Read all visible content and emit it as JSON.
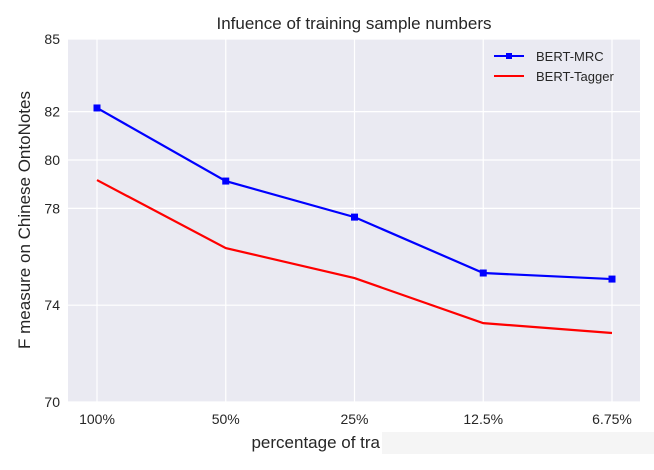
{
  "chart_data": {
    "type": "line",
    "title": "Infuence of training sample numbers",
    "xlabel": "percentage of tra",
    "ylabel": "F measure on Chinese OntoNotes",
    "categories": [
      "100%",
      "50%",
      "25%",
      "12.5%",
      "6.75%"
    ],
    "yticks": [
      70,
      74,
      78,
      80,
      82,
      85
    ],
    "ylim": [
      70,
      85
    ],
    "grid": true,
    "legend_position": "top-right",
    "series": [
      {
        "name": "BERT-MRC",
        "color": "#0000ff",
        "marker": "square",
        "values": [
          82.15,
          79.13,
          77.64,
          75.33,
          75.08
        ]
      },
      {
        "name": "BERT-Tagger",
        "color": "#ff0000",
        "marker": "none",
        "values": [
          79.17,
          76.36,
          75.12,
          73.26,
          72.85
        ]
      }
    ],
    "background_color": "#eaeaf2"
  }
}
